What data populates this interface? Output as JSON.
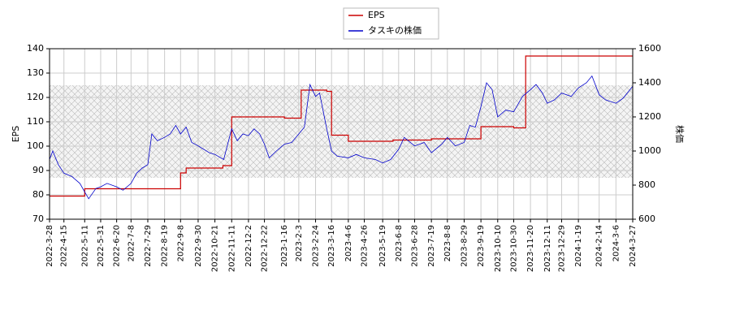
{
  "chart_data": {
    "type": "line",
    "y_label": "EPS",
    "y2_label": "株価",
    "xlim": [
      "2022-3-28",
      "2024-3-27"
    ],
    "xticks": [
      "2022-3-28",
      "2022-4-15",
      "2022-5-11",
      "2022-5-31",
      "2022-6-20",
      "2022-7-8",
      "2022-7-29",
      "2022-8-19",
      "2022-9-8",
      "2022-9-30",
      "2022-10-21",
      "2022-11-11",
      "2022-12-2",
      "2022-12-22",
      "2023-1-16",
      "2023-2-3",
      "2023-2-24",
      "2023-3-16",
      "2023-4-6",
      "2023-4-26",
      "2023-5-19",
      "2023-6-8",
      "2023-6-28",
      "2023-7-19",
      "2023-8-8",
      "2023-8-29",
      "2023-9-19",
      "2023-10-10",
      "2023-10-30",
      "2023-11-20",
      "2023-12-11",
      "2023-12-29",
      "2024-1-19",
      "2024-2-14",
      "2024-3-6",
      "2024-3-27"
    ],
    "ylim": [
      70,
      140
    ],
    "yticks": [
      70,
      80,
      90,
      100,
      110,
      120,
      130,
      140
    ],
    "y2lim": [
      600,
      1600
    ],
    "y2ticks": [
      600,
      800,
      1000,
      1200,
      1400,
      1600
    ],
    "grid": true,
    "shaded_range": [
      87,
      125
    ],
    "legend": "top",
    "series": [
      {
        "name": "EPS",
        "color": "#cc0000",
        "step": true,
        "x": [
          "2022-3-28",
          "2022-5-11",
          "2022-9-8",
          "2022-9-15",
          "2022-10-31",
          "2022-11-11",
          "2023-1-16",
          "2023-2-6",
          "2023-3-10",
          "2023-3-16",
          "2023-4-6",
          "2023-6-1",
          "2023-7-19",
          "2023-9-19",
          "2023-10-30",
          "2023-11-14",
          "2024-3-27"
        ],
        "values": [
          79.5,
          82.5,
          89,
          91,
          92,
          112,
          111.5,
          123,
          122.5,
          104.5,
          102,
          102.5,
          103,
          108,
          107.5,
          137,
          137
        ]
      },
      {
        "name": "タスキの株価",
        "color": "#0000cc",
        "axis": "y2",
        "x": [
          "2022-3-28",
          "2022-4-1",
          "2022-4-8",
          "2022-4-15",
          "2022-4-25",
          "2022-5-5",
          "2022-5-11",
          "2022-5-16",
          "2022-5-25",
          "2022-5-31",
          "2022-6-8",
          "2022-6-20",
          "2022-6-28",
          "2022-7-8",
          "2022-7-15",
          "2022-7-22",
          "2022-7-29",
          "2022-8-3",
          "2022-8-10",
          "2022-8-19",
          "2022-8-26",
          "2022-9-2",
          "2022-9-8",
          "2022-9-15",
          "2022-9-22",
          "2022-9-30",
          "2022-10-7",
          "2022-10-14",
          "2022-10-21",
          "2022-11-1",
          "2022-11-11",
          "2022-11-18",
          "2022-11-25",
          "2022-12-2",
          "2022-12-9",
          "2022-12-16",
          "2022-12-22",
          "2022-12-28",
          "2023-1-6",
          "2023-1-16",
          "2023-1-25",
          "2023-2-3",
          "2023-2-10",
          "2023-2-17",
          "2023-2-24",
          "2023-3-1",
          "2023-3-7",
          "2023-3-10",
          "2023-3-16",
          "2023-3-23",
          "2023-4-6",
          "2023-4-16",
          "2023-4-26",
          "2023-5-10",
          "2023-5-19",
          "2023-5-29",
          "2023-6-8",
          "2023-6-15",
          "2023-6-28",
          "2023-7-10",
          "2023-7-19",
          "2023-8-1",
          "2023-8-8",
          "2023-8-18",
          "2023-8-29",
          "2023-9-5",
          "2023-9-12",
          "2023-9-19",
          "2023-9-26",
          "2023-10-3",
          "2023-10-10",
          "2023-10-20",
          "2023-10-30",
          "2023-11-10",
          "2023-11-20",
          "2023-11-27",
          "2023-12-5",
          "2023-12-11",
          "2023-12-20",
          "2023-12-29",
          "2024-1-10",
          "2024-1-19",
          "2024-1-29",
          "2024-2-5",
          "2024-2-14",
          "2024-2-22",
          "2024-3-6",
          "2024-3-15",
          "2024-3-27"
        ],
        "values": [
          950,
          1000,
          920,
          870,
          850,
          810,
          760,
          720,
          780,
          790,
          810,
          790,
          770,
          810,
          870,
          900,
          920,
          1100,
          1060,
          1080,
          1100,
          1150,
          1100,
          1140,
          1050,
          1030,
          1010,
          990,
          980,
          950,
          1130,
          1060,
          1100,
          1090,
          1130,
          1100,
          1040,
          960,
          1000,
          1040,
          1050,
          1100,
          1140,
          1390,
          1320,
          1340,
          1200,
          1130,
          1000,
          970,
          960,
          980,
          960,
          950,
          930,
          950,
          1010,
          1080,
          1030,
          1050,
          990,
          1040,
          1080,
          1030,
          1050,
          1150,
          1140,
          1260,
          1400,
          1360,
          1200,
          1240,
          1230,
          1320,
          1360,
          1390,
          1340,
          1280,
          1300,
          1340,
          1320,
          1370,
          1400,
          1440,
          1330,
          1300,
          1280,
          1310,
          1380
        ]
      }
    ]
  }
}
